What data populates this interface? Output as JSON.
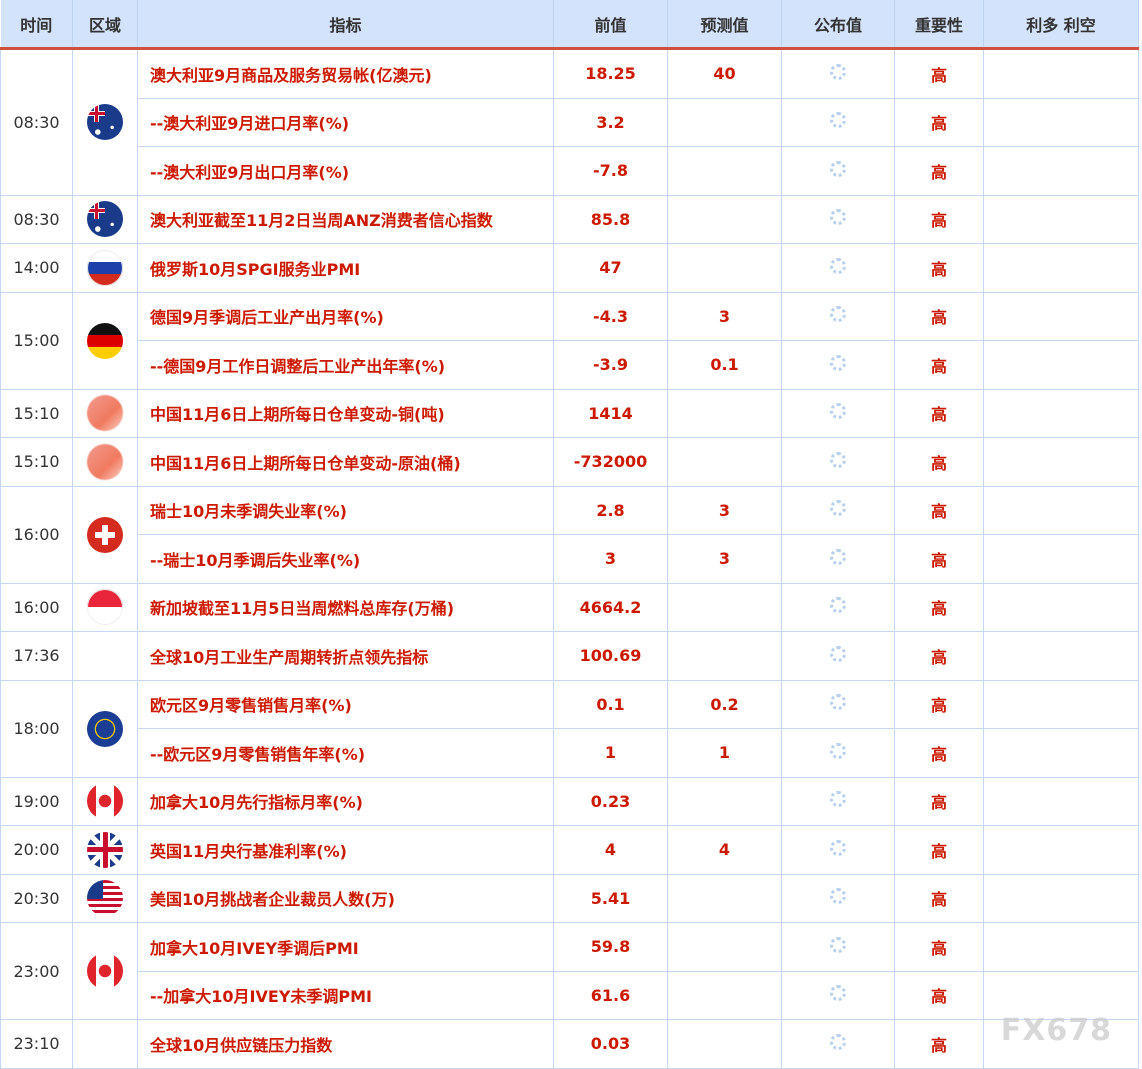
{
  "header": {
    "time": "时间",
    "region": "区域",
    "indicator": "指标",
    "previous": "前值",
    "forecast": "预测值",
    "actual": "公布值",
    "importance": "重要性",
    "impact": "利多 利空"
  },
  "colors": {
    "header_bg": "#d2e3fb",
    "accent_line": "#d0503f",
    "value_red": "#cc1a00"
  },
  "groups": [
    {
      "time": "08:30",
      "flag": "australia-flag",
      "rows": [
        {
          "indicator": "澳大利亚9月商品及服务贸易帐(亿澳元)",
          "previous": "18.25",
          "forecast": "40",
          "importance": "高"
        },
        {
          "indicator": "--澳大利亚9月进口月率(%)",
          "previous": "3.2",
          "forecast": "",
          "importance": "高"
        },
        {
          "indicator": "--澳大利亚9月出口月率(%)",
          "previous": "-7.8",
          "forecast": "",
          "importance": "高"
        }
      ]
    },
    {
      "time": "08:30",
      "flag": "australia-flag",
      "rows": [
        {
          "indicator": "澳大利亚截至11月2日当周ANZ消费者信心指数",
          "previous": "85.8",
          "forecast": "",
          "importance": "高"
        }
      ]
    },
    {
      "time": "14:00",
      "flag": "russia-flag",
      "rows": [
        {
          "indicator": "俄罗斯10月SPGI服务业PMI",
          "previous": "47",
          "forecast": "",
          "importance": "高"
        }
      ]
    },
    {
      "time": "15:00",
      "flag": "germany-flag",
      "rows": [
        {
          "indicator": "德国9月季调后工业产出月率(%)",
          "previous": "-4.3",
          "forecast": "3",
          "importance": "高"
        },
        {
          "indicator": "--德国9月工作日调整后工业产出年率(%)",
          "previous": "-3.9",
          "forecast": "0.1",
          "importance": "高"
        }
      ]
    },
    {
      "time": "15:10",
      "flag": "china-flag",
      "rows": [
        {
          "indicator": "中国11月6日上期所每日仓单变动-铜(吨)",
          "previous": "1414",
          "forecast": "",
          "importance": "高"
        }
      ]
    },
    {
      "time": "15:10",
      "flag": "china-flag",
      "rows": [
        {
          "indicator": "中国11月6日上期所每日仓单变动-原油(桶)",
          "previous": "-732000",
          "forecast": "",
          "importance": "高"
        }
      ]
    },
    {
      "time": "16:00",
      "flag": "switzerland-flag",
      "rows": [
        {
          "indicator": "瑞士10月未季调失业率(%)",
          "previous": "2.8",
          "forecast": "3",
          "importance": "高"
        },
        {
          "indicator": "--瑞士10月季调后失业率(%)",
          "previous": "3",
          "forecast": "3",
          "importance": "高"
        }
      ]
    },
    {
      "time": "16:00",
      "flag": "singapore-flag",
      "rows": [
        {
          "indicator": "新加坡截至11月5日当周燃料总库存(万桶)",
          "previous": "4664.2",
          "forecast": "",
          "importance": "高"
        }
      ]
    },
    {
      "time": "17:36",
      "flag": "",
      "rows": [
        {
          "indicator": "全球10月工业生产周期转折点领先指标",
          "previous": "100.69",
          "forecast": "",
          "importance": "高"
        }
      ]
    },
    {
      "time": "18:00",
      "flag": "eu-flag",
      "rows": [
        {
          "indicator": "欧元区9月零售销售月率(%)",
          "previous": "0.1",
          "forecast": "0.2",
          "importance": "高"
        },
        {
          "indicator": "--欧元区9月零售销售年率(%)",
          "previous": "1",
          "forecast": "1",
          "importance": "高"
        }
      ]
    },
    {
      "time": "19:00",
      "flag": "canada-flag",
      "rows": [
        {
          "indicator": "加拿大10月先行指标月率(%)",
          "previous": "0.23",
          "forecast": "",
          "importance": "高"
        }
      ]
    },
    {
      "time": "20:00",
      "flag": "uk-flag",
      "rows": [
        {
          "indicator": "英国11月央行基准利率(%)",
          "previous": "4",
          "forecast": "4",
          "importance": "高"
        }
      ]
    },
    {
      "time": "20:30",
      "flag": "usa-flag",
      "rows": [
        {
          "indicator": "美国10月挑战者企业裁员人数(万)",
          "previous": "5.41",
          "forecast": "",
          "importance": "高"
        }
      ]
    },
    {
      "time": "23:00",
      "flag": "canada-flag",
      "rows": [
        {
          "indicator": "加拿大10月IVEY季调后PMI",
          "previous": "59.8",
          "forecast": "",
          "importance": "高"
        },
        {
          "indicator": "--加拿大10月IVEY未季调PMI",
          "previous": "61.6",
          "forecast": "",
          "importance": "高"
        }
      ]
    },
    {
      "time": "23:10",
      "flag": "",
      "rows": [
        {
          "indicator": "全球10月供应链压力指数",
          "previous": "0.03",
          "forecast": "",
          "importance": "高"
        }
      ]
    }
  ],
  "watermark": "FX678"
}
